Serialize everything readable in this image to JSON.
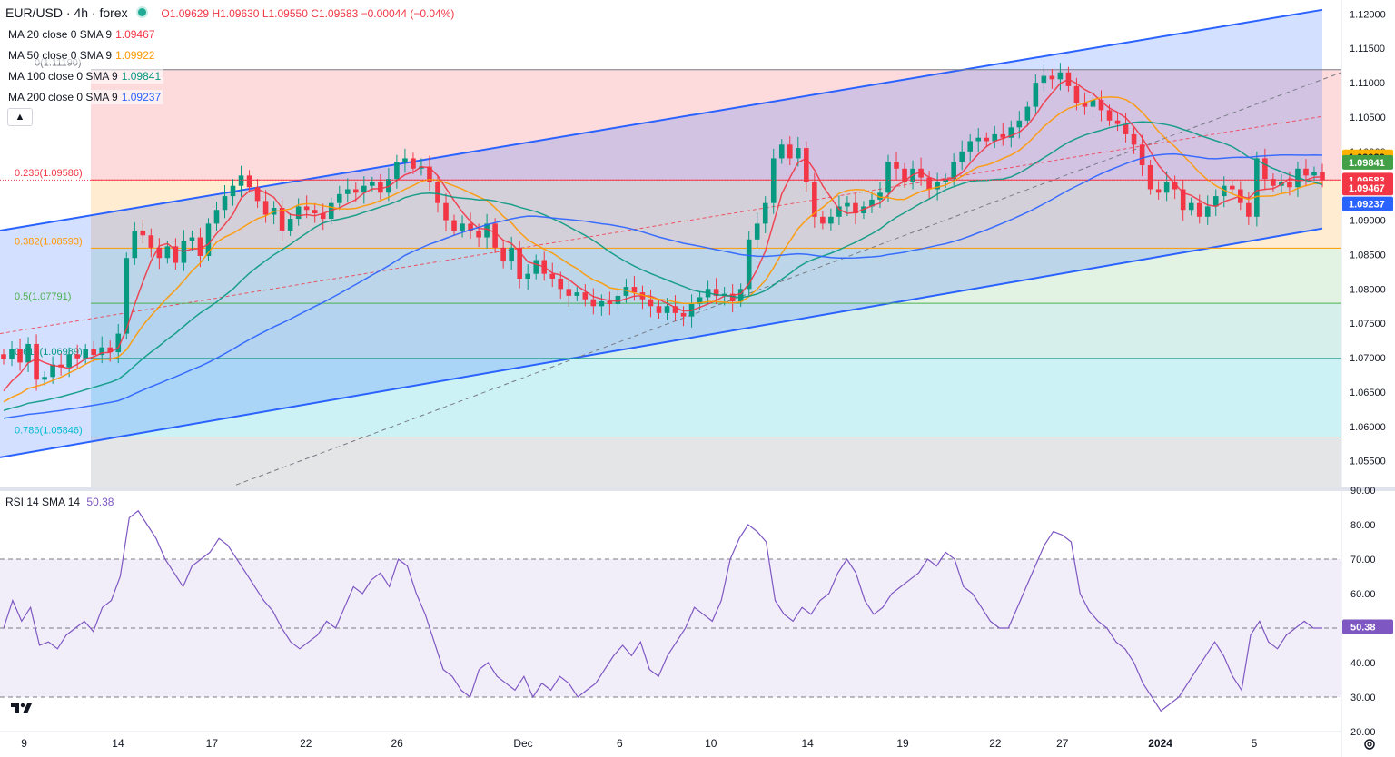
{
  "header": {
    "symbol": "EUR/USD · 4h · forex",
    "open": "O1.09629",
    "high": "H1.09630",
    "low": "L1.09550",
    "close": "C1.09583",
    "change": "−0.00044 (−0.04%)"
  },
  "legends": [
    {
      "label": "MA 20 close 0 SMA 9",
      "value": "1.09467",
      "color": "#f23645"
    },
    {
      "label": "MA 50 close 0 SMA 9",
      "value": "1.09922",
      "color": "#ff9800"
    },
    {
      "label": "MA 100 close 0 SMA 9",
      "value": "1.09841",
      "color": "#089981"
    },
    {
      "label": "MA 200 close 0 SMA 9",
      "value": "1.09237",
      "color": "#2962ff"
    }
  ],
  "rsi_legend": {
    "label": "RSI 14 SMA 14",
    "value": "50.38",
    "color": "#7e57c2"
  },
  "chart_data": [
    {
      "type": "candlestick",
      "title": "EUR/USD 4h",
      "ylim": [
        1.051,
        1.1215
      ],
      "price_ticks": [
        "1.12000",
        "1.11500",
        "1.11000",
        "1.10500",
        "1.10000",
        "1.09500",
        "1.09000",
        "1.08500",
        "1.08000",
        "1.07500",
        "1.07000",
        "1.06500",
        "1.06000",
        "1.05500"
      ],
      "x_ticks": [
        "9",
        "14",
        "17",
        "22",
        "26",
        "Dec",
        "6",
        "10",
        "14",
        "19",
        "22",
        "27",
        "2024",
        "5"
      ],
      "fib_levels": [
        {
          "label": "0(1.11190)",
          "price": 1.1119,
          "color": "#787b86"
        },
        {
          "label": "0.236(1.09586)",
          "price": 1.09586,
          "color": "#f23645"
        },
        {
          "label": "0.382(1.08593)",
          "price": 1.08593,
          "color": "#ff9800"
        },
        {
          "label": "0.5(1.07791)",
          "price": 1.07791,
          "color": "#4caf50"
        },
        {
          "label": "0.618(1.06989)",
          "price": 1.06989,
          "color": "#089981"
        },
        {
          "label": "0.786(1.05846)",
          "price": 1.05846,
          "color": "#00bcd4"
        }
      ],
      "price_labels": [
        {
          "value": "1.09922",
          "color": "#ffb300",
          "text_color": "#131722"
        },
        {
          "value": "1.09841",
          "color": "#43a047",
          "text_color": "#ffffff"
        },
        {
          "value": "1.09583",
          "color": "#f23645",
          "text_color": "#ffffff"
        },
        {
          "value": "1.09467",
          "color": "#f23645",
          "text_color": "#ffffff"
        },
        {
          "value": "1.09237",
          "color": "#2962ff",
          "text_color": "#ffffff"
        }
      ],
      "channel": {
        "upper": [
          1.0885,
          1.1206
        ],
        "lower": [
          1.0555,
          1.0888
        ],
        "mid": [
          1.0735,
          1.1051
        ]
      },
      "ohlc_anchors": [
        [
          1.0705,
          1.0698
        ],
        [
          1.0698,
          1.0712
        ],
        [
          1.0712,
          1.0693
        ],
        [
          1.0693,
          1.072
        ],
        [
          1.072,
          1.0668
        ],
        [
          1.0668,
          1.0672
        ],
        [
          1.0672,
          1.069
        ],
        [
          1.069,
          1.0686
        ],
        [
          1.0686,
          1.0705
        ],
        [
          1.0705,
          1.0699
        ],
        [
          1.0699,
          1.0712
        ],
        [
          1.0712,
          1.0704
        ],
        [
          1.0704,
          1.0715
        ],
        [
          1.0715,
          1.0708
        ],
        [
          1.0708,
          1.0735
        ],
        [
          1.0735,
          1.0845
        ],
        [
          1.0845,
          1.0885
        ],
        [
          1.0885,
          1.0878
        ],
        [
          1.0878,
          1.086
        ],
        [
          1.086,
          1.0845
        ],
        [
          1.0845,
          1.0862
        ],
        [
          1.0862,
          1.0838
        ],
        [
          1.0838,
          1.087
        ],
        [
          1.087,
          1.0875
        ],
        [
          1.0875,
          1.0848
        ],
        [
          1.0848,
          1.0895
        ],
        [
          1.0895,
          1.0915
        ],
        [
          1.0915,
          1.0935
        ],
        [
          1.0935,
          1.095
        ],
        [
          1.095,
          1.0965
        ],
        [
          1.0965,
          1.0948
        ],
        [
          1.0948,
          1.0928
        ],
        [
          1.0928,
          1.0908
        ],
        [
          1.0908,
          1.0918
        ],
        [
          1.0918,
          1.0885
        ],
        [
          1.0885,
          1.0902
        ],
        [
          1.0902,
          1.092
        ],
        [
          1.092,
          1.0915
        ],
        [
          1.0915,
          1.091
        ],
        [
          1.091,
          1.0902
        ],
        [
          1.0902,
          1.0925
        ],
        [
          1.0925,
          1.0938
        ],
        [
          1.0938,
          1.0945
        ],
        [
          1.0945,
          1.094
        ],
        [
          1.094,
          1.095
        ],
        [
          1.095,
          1.0955
        ],
        [
          1.0955,
          1.094
        ],
        [
          1.094,
          1.096
        ],
        [
          1.096,
          1.0985
        ],
        [
          1.0985,
          1.099
        ],
        [
          1.099,
          1.0975
        ],
        [
          1.0975,
          1.0978
        ],
        [
          1.0978,
          1.0955
        ],
        [
          1.0955,
          1.0925
        ],
        [
          1.0925,
          1.09
        ],
        [
          1.09,
          1.0885
        ],
        [
          1.0885,
          1.0895
        ],
        [
          1.0895,
          1.0885
        ],
        [
          1.0885,
          1.0875
        ],
        [
          1.0875,
          1.0895
        ],
        [
          1.0895,
          1.086
        ],
        [
          1.086,
          1.084
        ],
        [
          1.084,
          1.086
        ],
        [
          1.086,
          1.0815
        ],
        [
          1.0815,
          1.0822
        ],
        [
          1.0822,
          1.0842
        ],
        [
          1.0842,
          1.0822
        ],
        [
          1.0822,
          1.0815
        ],
        [
          1.0815,
          1.08
        ],
        [
          1.08,
          1.079
        ],
        [
          1.079,
          1.0795
        ],
        [
          1.0795,
          1.0785
        ],
        [
          1.0785,
          1.0775
        ],
        [
          1.0775,
          1.0782
        ],
        [
          1.0782,
          1.0778
        ],
        [
          1.0778,
          1.079
        ],
        [
          1.079,
          1.0803
        ],
        [
          1.0803,
          1.0795
        ],
        [
          1.0795,
          1.0785
        ],
        [
          1.0785,
          1.0775
        ],
        [
          1.0775,
          1.0765
        ],
        [
          1.0765,
          1.0775
        ],
        [
          1.0775,
          1.0765
        ],
        [
          1.0765,
          1.076
        ],
        [
          1.076,
          1.0778
        ],
        [
          1.0778,
          1.0788
        ],
        [
          1.0788,
          1.08
        ],
        [
          1.08,
          1.079
        ],
        [
          1.079,
          1.0793
        ],
        [
          1.0793,
          1.0782
        ],
        [
          1.0782,
          1.08
        ],
        [
          1.08,
          1.0872
        ],
        [
          1.0872,
          1.0895
        ],
        [
          1.0895,
          1.0925
        ],
        [
          1.0925,
          1.099
        ],
        [
          1.099,
          1.101
        ],
        [
          1.101,
          1.099
        ],
        [
          1.099,
          1.1005
        ],
        [
          1.1005,
          1.0955
        ],
        [
          1.0955,
          1.0905
        ],
        [
          1.0905,
          1.0895
        ],
        [
          1.0895,
          1.0905
        ],
        [
          1.0905,
          1.092
        ],
        [
          1.092,
          1.0925
        ],
        [
          1.0925,
          1.091
        ],
        [
          1.091,
          1.092
        ],
        [
          1.092,
          1.093
        ],
        [
          1.093,
          1.094
        ],
        [
          1.094,
          1.0985
        ],
        [
          1.0985,
          1.0975
        ],
        [
          1.0975,
          1.0955
        ],
        [
          1.0955,
          1.0975
        ],
        [
          1.0975,
          1.0962
        ],
        [
          1.0962,
          1.0945
        ],
        [
          1.0945,
          1.0955
        ],
        [
          1.0955,
          1.096
        ],
        [
          1.096,
          1.0985
        ],
        [
          1.0985,
          1.1
        ],
        [
          1.1,
          1.1015
        ],
        [
          1.1015,
          1.102
        ],
        [
          1.102,
          1.1015
        ],
        [
          1.1015,
          1.1025
        ],
        [
          1.1025,
          1.102
        ],
        [
          1.102,
          1.1035
        ],
        [
          1.1035,
          1.1045
        ],
        [
          1.1045,
          1.1065
        ],
        [
          1.1065,
          1.11
        ],
        [
          1.11,
          1.111
        ],
        [
          1.111,
          1.1105
        ],
        [
          1.1105,
          1.1115
        ],
        [
          1.1115,
          1.1095
        ],
        [
          1.1095,
          1.107
        ],
        [
          1.107,
          1.1065
        ],
        [
          1.1065,
          1.1075
        ],
        [
          1.1075,
          1.106
        ],
        [
          1.106,
          1.1045
        ],
        [
          1.1045,
          1.104
        ],
        [
          1.104,
          1.1025
        ],
        [
          1.1025,
          1.101
        ],
        [
          1.101,
          1.098
        ],
        [
          1.098,
          1.0945
        ],
        [
          1.0945,
          1.094
        ],
        [
          1.094,
          1.0955
        ],
        [
          1.0955,
          1.0945
        ],
        [
          1.0945,
          1.0915
        ],
        [
          1.0915,
          1.0925
        ],
        [
          1.0925,
          1.0905
        ],
        [
          1.0905,
          1.092
        ],
        [
          1.092,
          1.0935
        ],
        [
          1.0935,
          1.095
        ],
        [
          1.095,
          1.0945
        ],
        [
          1.0945,
          1.0925
        ],
        [
          1.0925,
          1.0905
        ],
        [
          1.0905,
          1.099
        ],
        [
          1.099,
          1.096
        ],
        [
          1.096,
          1.095
        ],
        [
          1.095,
          1.0955
        ],
        [
          1.0955,
          1.0948
        ],
        [
          1.0948,
          1.0975
        ],
        [
          1.0975,
          1.0965
        ],
        [
          1.0965,
          1.097
        ],
        [
          1.097,
          1.0958
        ]
      ],
      "rsi": {
        "ylim": [
          20,
          90
        ],
        "ticks": [
          "90.00",
          "80.00",
          "70.00",
          "60.00",
          "50.00",
          "40.00",
          "30.00",
          "20.00"
        ],
        "bands": [
          70,
          50,
          30
        ],
        "value_label": "50.38",
        "values": [
          50,
          58,
          52,
          56,
          45,
          46,
          44,
          48,
          50,
          52,
          49,
          56,
          58,
          65,
          82,
          84,
          80,
          76,
          70,
          66,
          62,
          68,
          70,
          72,
          76,
          74,
          70,
          66,
          62,
          58,
          55,
          50,
          46,
          44,
          46,
          48,
          52,
          50,
          56,
          62,
          60,
          64,
          66,
          62,
          70,
          68,
          60,
          54,
          46,
          38,
          36,
          32,
          30,
          38,
          40,
          36,
          34,
          32,
          36,
          30,
          34,
          32,
          36,
          34,
          30,
          32,
          34,
          38,
          42,
          45,
          42,
          46,
          38,
          36,
          42,
          46,
          50,
          56,
          54,
          52,
          58,
          70,
          76,
          80,
          78,
          75,
          58,
          54,
          52,
          56,
          54,
          58,
          60,
          66,
          70,
          66,
          58,
          54,
          56,
          60,
          62,
          64,
          66,
          70,
          68,
          72,
          70,
          62,
          60,
          56,
          52,
          50,
          50,
          56,
          62,
          68,
          74,
          78,
          77,
          75,
          60,
          55,
          52,
          50,
          46,
          44,
          40,
          34,
          30,
          26,
          28,
          30,
          34,
          38,
          42,
          46,
          42,
          36,
          32,
          48,
          52,
          46,
          44,
          48,
          50,
          52,
          50,
          50
        ]
      }
    }
  ]
}
